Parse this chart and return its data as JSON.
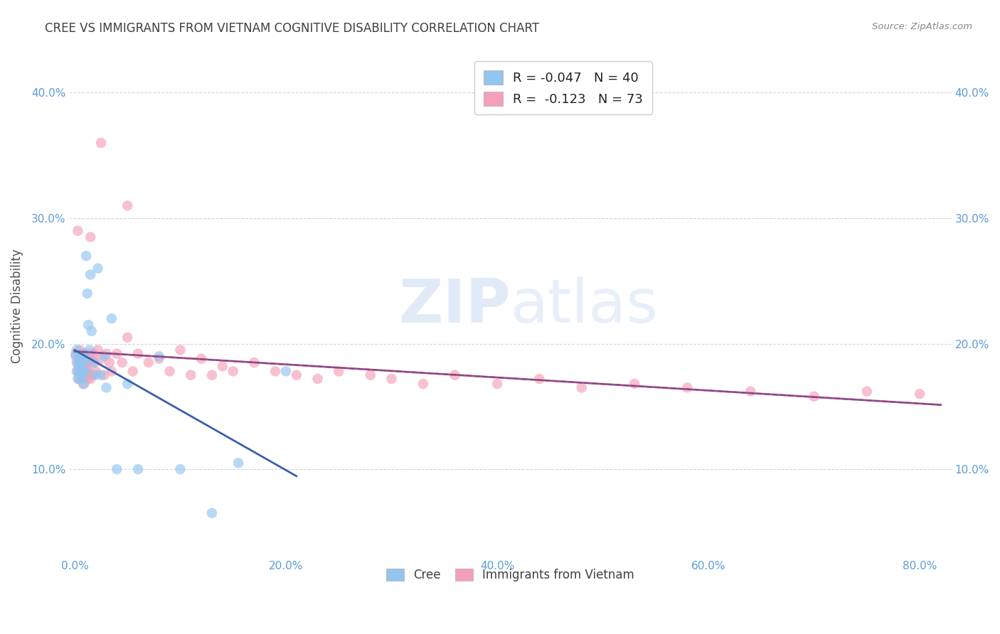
{
  "title": "CREE VS IMMIGRANTS FROM VIETNAM COGNITIVE DISABILITY CORRELATION CHART",
  "source": "Source: ZipAtlas.com",
  "ylabel": "Cognitive Disability",
  "xlim": [
    -0.005,
    0.83
  ],
  "ylim": [
    0.03,
    0.43
  ],
  "xtick_values": [
    0.0,
    0.2,
    0.4,
    0.6,
    0.8
  ],
  "xtick_labels": [
    "0.0%",
    "20.0%",
    "40.0%",
    "60.0%",
    "80.0%"
  ],
  "ytick_values": [
    0.1,
    0.2,
    0.3,
    0.4
  ],
  "ytick_labels": [
    "10.0%",
    "20.0%",
    "30.0%",
    "40.0%"
  ],
  "watermark_zip": "ZIP",
  "watermark_atlas": "atlas",
  "cree_color": "#92c5f0",
  "cree_edge": "#92c5f0",
  "vietnam_color": "#f5a0b8",
  "vietnam_edge": "#f5a0b8",
  "cree_line_color": "#3a5faa",
  "vietnam_line_color": "#d04070",
  "dashed_line_color": "#3a5faa",
  "background_color": "#ffffff",
  "grid_color": "#cccccc",
  "title_color": "#404040",
  "axis_label_color": "#505050",
  "tick_color": "#5b9bd5",
  "source_color": "#888888",
  "cree_x": [
    0.001,
    0.002,
    0.002,
    0.003,
    0.003,
    0.004,
    0.004,
    0.005,
    0.005,
    0.006,
    0.006,
    0.007,
    0.007,
    0.008,
    0.008,
    0.009,
    0.009,
    0.01,
    0.01,
    0.011,
    0.012,
    0.013,
    0.014,
    0.015,
    0.016,
    0.018,
    0.02,
    0.022,
    0.025,
    0.028,
    0.03,
    0.035,
    0.04,
    0.05,
    0.06,
    0.08,
    0.1,
    0.13,
    0.155,
    0.2
  ],
  "cree_y": [
    0.19,
    0.195,
    0.178,
    0.185,
    0.172,
    0.188,
    0.182,
    0.192,
    0.175,
    0.185,
    0.178,
    0.19,
    0.172,
    0.185,
    0.178,
    0.192,
    0.168,
    0.188,
    0.178,
    0.27,
    0.24,
    0.215,
    0.195,
    0.255,
    0.21,
    0.185,
    0.175,
    0.26,
    0.175,
    0.19,
    0.165,
    0.22,
    0.1,
    0.168,
    0.1,
    0.19,
    0.1,
    0.065,
    0.105,
    0.178
  ],
  "vietnam_x": [
    0.001,
    0.002,
    0.003,
    0.003,
    0.004,
    0.004,
    0.005,
    0.005,
    0.006,
    0.006,
    0.007,
    0.007,
    0.008,
    0.008,
    0.009,
    0.009,
    0.01,
    0.01,
    0.011,
    0.011,
    0.012,
    0.012,
    0.013,
    0.013,
    0.014,
    0.015,
    0.015,
    0.016,
    0.017,
    0.018,
    0.019,
    0.02,
    0.022,
    0.025,
    0.028,
    0.03,
    0.033,
    0.035,
    0.04,
    0.045,
    0.05,
    0.055,
    0.06,
    0.07,
    0.08,
    0.09,
    0.1,
    0.11,
    0.12,
    0.13,
    0.14,
    0.15,
    0.17,
    0.19,
    0.21,
    0.23,
    0.25,
    0.28,
    0.3,
    0.33,
    0.36,
    0.4,
    0.44,
    0.48,
    0.53,
    0.58,
    0.64,
    0.7,
    0.75,
    0.8,
    0.025,
    0.05,
    0.015
  ],
  "vietnam_y": [
    0.192,
    0.185,
    0.29,
    0.178,
    0.188,
    0.172,
    0.195,
    0.178,
    0.185,
    0.172,
    0.188,
    0.175,
    0.192,
    0.168,
    0.185,
    0.178,
    0.192,
    0.175,
    0.185,
    0.178,
    0.188,
    0.172,
    0.185,
    0.178,
    0.192,
    0.185,
    0.172,
    0.188,
    0.175,
    0.192,
    0.185,
    0.178,
    0.195,
    0.188,
    0.175,
    0.192,
    0.185,
    0.178,
    0.192,
    0.185,
    0.205,
    0.178,
    0.192,
    0.185,
    0.188,
    0.178,
    0.195,
    0.175,
    0.188,
    0.175,
    0.182,
    0.178,
    0.185,
    0.178,
    0.175,
    0.172,
    0.178,
    0.175,
    0.172,
    0.168,
    0.175,
    0.168,
    0.172,
    0.165,
    0.168,
    0.165,
    0.162,
    0.158,
    0.162,
    0.16,
    0.36,
    0.31,
    0.285
  ]
}
